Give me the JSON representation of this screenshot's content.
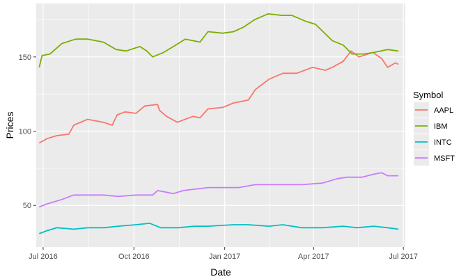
{
  "chart_data": {
    "type": "line",
    "xlabel": "Date",
    "ylabel": "Prices",
    "x_axis": {
      "min": "2016-06-24",
      "max": "2017-07-03",
      "ticks": [
        {
          "date": "2016-07-01",
          "label": "Jul 2016"
        },
        {
          "date": "2016-10-01",
          "label": "Oct 2016"
        },
        {
          "date": "2017-01-01",
          "label": "Jan 2017"
        },
        {
          "date": "2017-04-01",
          "label": "Apr 2017"
        },
        {
          "date": "2017-07-01",
          "label": "Jul 2017"
        }
      ]
    },
    "y_axis": {
      "min": 22,
      "max": 186,
      "ticks": [
        50,
        100,
        150
      ],
      "minor_ticks": [
        75,
        125,
        175
      ]
    },
    "grid": true,
    "panel_color": "#ebebeb",
    "legend": {
      "title": "Symbol",
      "position": "right"
    },
    "series": [
      {
        "name": "AAPL",
        "color": "#f8766d",
        "points": [
          [
            "2016-06-27",
            92
          ],
          [
            "2016-07-05",
            95
          ],
          [
            "2016-07-15",
            97
          ],
          [
            "2016-07-27",
            98
          ],
          [
            "2016-08-01",
            104
          ],
          [
            "2016-08-15",
            108
          ],
          [
            "2016-08-31",
            106
          ],
          [
            "2016-09-09",
            104
          ],
          [
            "2016-09-14",
            111
          ],
          [
            "2016-09-22",
            113
          ],
          [
            "2016-10-03",
            112
          ],
          [
            "2016-10-12",
            117
          ],
          [
            "2016-10-25",
            118
          ],
          [
            "2016-10-27",
            114
          ],
          [
            "2016-11-03",
            110
          ],
          [
            "2016-11-14",
            106
          ],
          [
            "2016-11-30",
            110
          ],
          [
            "2016-12-07",
            109
          ],
          [
            "2016-12-15",
            115
          ],
          [
            "2016-12-30",
            116
          ],
          [
            "2017-01-10",
            119
          ],
          [
            "2017-01-25",
            121
          ],
          [
            "2017-02-01",
            128
          ],
          [
            "2017-02-15",
            135
          ],
          [
            "2017-03-01",
            139
          ],
          [
            "2017-03-15",
            139
          ],
          [
            "2017-03-31",
            143
          ],
          [
            "2017-04-13",
            141
          ],
          [
            "2017-04-20",
            143
          ],
          [
            "2017-05-01",
            147
          ],
          [
            "2017-05-09",
            154
          ],
          [
            "2017-05-17",
            150
          ],
          [
            "2017-05-31",
            153
          ],
          [
            "2017-06-09",
            149
          ],
          [
            "2017-06-15",
            143
          ],
          [
            "2017-06-23",
            146
          ],
          [
            "2017-06-26",
            145
          ]
        ]
      },
      {
        "name": "IBM",
        "color": "#7cae00",
        "points": [
          [
            "2016-06-27",
            143
          ],
          [
            "2016-06-30",
            151
          ],
          [
            "2016-07-08",
            152
          ],
          [
            "2016-07-20",
            159
          ],
          [
            "2016-08-03",
            162
          ],
          [
            "2016-08-15",
            162
          ],
          [
            "2016-08-31",
            160
          ],
          [
            "2016-09-13",
            155
          ],
          [
            "2016-09-23",
            154
          ],
          [
            "2016-10-07",
            157
          ],
          [
            "2016-10-14",
            154
          ],
          [
            "2016-10-20",
            150
          ],
          [
            "2016-10-31",
            153
          ],
          [
            "2016-11-10",
            157
          ],
          [
            "2016-11-22",
            162
          ],
          [
            "2016-12-07",
            160
          ],
          [
            "2016-12-15",
            167
          ],
          [
            "2016-12-30",
            166
          ],
          [
            "2017-01-10",
            167
          ],
          [
            "2017-01-20",
            170
          ],
          [
            "2017-01-31",
            175
          ],
          [
            "2017-02-14",
            179
          ],
          [
            "2017-02-28",
            178
          ],
          [
            "2017-03-10",
            178
          ],
          [
            "2017-03-24",
            174
          ],
          [
            "2017-04-03",
            172
          ],
          [
            "2017-04-20",
            161
          ],
          [
            "2017-05-01",
            158
          ],
          [
            "2017-05-10",
            152
          ],
          [
            "2017-05-22",
            152
          ],
          [
            "2017-06-01",
            153
          ],
          [
            "2017-06-15",
            155
          ],
          [
            "2017-06-26",
            154
          ]
        ]
      },
      {
        "name": "INTC",
        "color": "#00bfc4",
        "points": [
          [
            "2016-06-27",
            31
          ],
          [
            "2016-07-05",
            33
          ],
          [
            "2016-07-15",
            35
          ],
          [
            "2016-08-01",
            34
          ],
          [
            "2016-08-15",
            35
          ],
          [
            "2016-09-01",
            35
          ],
          [
            "2016-09-15",
            36
          ],
          [
            "2016-10-03",
            37
          ],
          [
            "2016-10-17",
            38
          ],
          [
            "2016-10-28",
            35
          ],
          [
            "2016-11-15",
            35
          ],
          [
            "2016-12-01",
            36
          ],
          [
            "2016-12-15",
            36
          ],
          [
            "2017-01-10",
            37
          ],
          [
            "2017-01-25",
            37
          ],
          [
            "2017-02-15",
            36
          ],
          [
            "2017-03-01",
            37
          ],
          [
            "2017-03-20",
            35
          ],
          [
            "2017-04-10",
            35
          ],
          [
            "2017-05-01",
            36
          ],
          [
            "2017-05-15",
            35
          ],
          [
            "2017-06-01",
            36
          ],
          [
            "2017-06-15",
            35
          ],
          [
            "2017-06-26",
            34
          ]
        ]
      },
      {
        "name": "MSFT",
        "color": "#c77cff",
        "points": [
          [
            "2016-06-27",
            49
          ],
          [
            "2016-07-05",
            51
          ],
          [
            "2016-07-20",
            54
          ],
          [
            "2016-08-01",
            57
          ],
          [
            "2016-08-31",
            57
          ],
          [
            "2016-09-15",
            56
          ],
          [
            "2016-10-03",
            57
          ],
          [
            "2016-10-20",
            57
          ],
          [
            "2016-10-25",
            60
          ],
          [
            "2016-11-10",
            58
          ],
          [
            "2016-11-20",
            60
          ],
          [
            "2016-12-15",
            62
          ],
          [
            "2017-01-15",
            62
          ],
          [
            "2017-02-01",
            64
          ],
          [
            "2017-02-15",
            64
          ],
          [
            "2017-03-01",
            64
          ],
          [
            "2017-03-20",
            64
          ],
          [
            "2017-04-10",
            65
          ],
          [
            "2017-04-25",
            68
          ],
          [
            "2017-05-05",
            69
          ],
          [
            "2017-05-20",
            69
          ],
          [
            "2017-06-01",
            71
          ],
          [
            "2017-06-09",
            72
          ],
          [
            "2017-06-15",
            70
          ],
          [
            "2017-06-26",
            70
          ]
        ]
      }
    ]
  }
}
